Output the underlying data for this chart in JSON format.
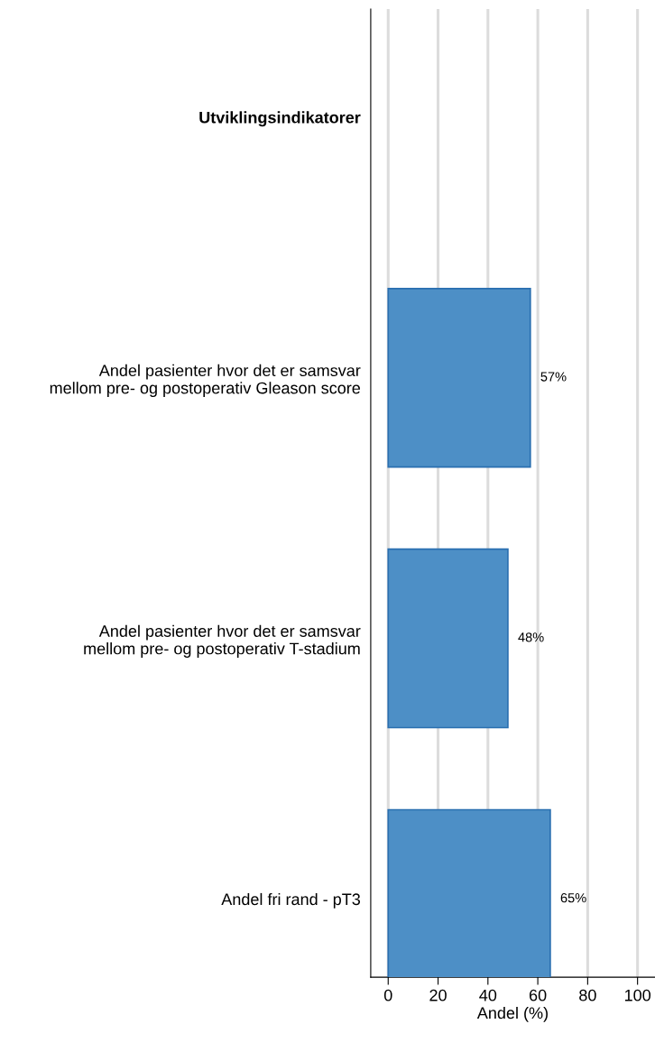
{
  "chart_data": {
    "type": "bar",
    "orientation": "horizontal",
    "xlabel": "Andel (%)",
    "categories": [
      "Utviklingsindikatorer",
      "Andel pasienter hvor det er samsvar\nmellom pre- og postoperativ Gleason score",
      "Andel pasienter hvor det er samsvar\nmellom pre- og postoperativ T-stadium",
      "Andel fri rand - pT3"
    ],
    "values": [
      null,
      57,
      48,
      65
    ],
    "value_labels": [
      null,
      "57%",
      "48%",
      "65%"
    ],
    "color": "#4d8fc6",
    "xlim": [
      -7,
      107
    ],
    "xticks": [
      0,
      20,
      40,
      60,
      80,
      100
    ],
    "grid": "x"
  }
}
